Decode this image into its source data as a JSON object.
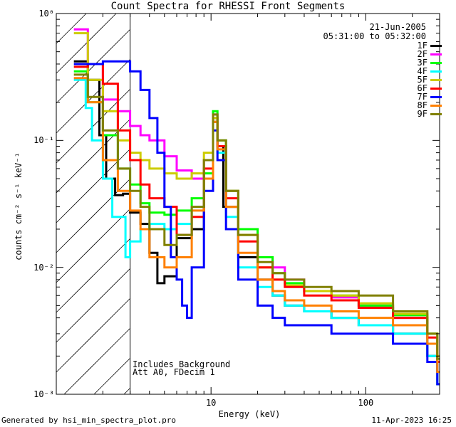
{
  "chart_data": {
    "type": "line",
    "title": "Count Spectra for RHESSI Front Segments",
    "xlabel": "Energy (keV)",
    "ylabel": "counts cm⁻² s⁻¹ keV⁻¹",
    "xscale": "log",
    "yscale": "log",
    "xlim": [
      1.0,
      300
    ],
    "ylim": [
      0.001,
      1.0
    ],
    "x_major_ticks": [
      10,
      100
    ],
    "x_major_tick_labels": [
      "10",
      "100"
    ],
    "y_major_ticks": [
      0.001,
      0.01,
      0.1,
      1
    ],
    "y_major_tick_labels": [
      "10⁻³",
      "10⁻²",
      "10⁻¹",
      "10⁰"
    ],
    "shaded_region": {
      "x_from": 1.0,
      "x_to": 3.0,
      "style": "hatched"
    },
    "annotations": {
      "date": "21-Jun-2005",
      "time_range": "05:31:00 to 05:32:00",
      "note_line1": "Includes Background",
      "note_line2": "Att A0, FDecim 1"
    },
    "series": [
      {
        "name": "1F",
        "color": "#000000",
        "values": [
          [
            1.3,
            0.42
          ],
          [
            1.6,
            0.3
          ],
          [
            1.9,
            0.11
          ],
          [
            2.1,
            0.05
          ],
          [
            2.4,
            0.037
          ],
          [
            2.7,
            0.038
          ],
          [
            3.0,
            0.027
          ],
          [
            3.5,
            0.022
          ],
          [
            4.0,
            0.013
          ],
          [
            4.5,
            0.0075
          ],
          [
            5.0,
            0.0085
          ],
          [
            6.0,
            0.017
          ],
          [
            7.5,
            0.02
          ],
          [
            9.0,
            0.05
          ],
          [
            10.3,
            0.15
          ],
          [
            11.0,
            0.09
          ],
          [
            12.0,
            0.03
          ],
          [
            15.0,
            0.012
          ],
          [
            20.0,
            0.008
          ],
          [
            25.0,
            0.006
          ],
          [
            30.0,
            0.005
          ],
          [
            40.0,
            0.0045
          ],
          [
            60.0,
            0.004
          ],
          [
            90.0,
            0.0035
          ],
          [
            150.0,
            0.003
          ],
          [
            250.0,
            0.002
          ],
          [
            290.0,
            0.0012
          ]
        ]
      },
      {
        "name": "2F",
        "color": "#ff00ff",
        "values": [
          [
            1.3,
            0.75
          ],
          [
            1.6,
            0.4
          ],
          [
            2.0,
            0.21
          ],
          [
            2.5,
            0.17
          ],
          [
            3.0,
            0.13
          ],
          [
            3.5,
            0.11
          ],
          [
            4.0,
            0.1
          ],
          [
            5.0,
            0.075
          ],
          [
            6.0,
            0.058
          ],
          [
            7.5,
            0.05
          ],
          [
            9.0,
            0.07
          ],
          [
            10.3,
            0.16
          ],
          [
            11.0,
            0.09
          ],
          [
            12.5,
            0.04
          ],
          [
            15.0,
            0.02
          ],
          [
            20.0,
            0.012
          ],
          [
            25.0,
            0.01
          ],
          [
            30.0,
            0.008
          ],
          [
            40.0,
            0.0065
          ],
          [
            60.0,
            0.0058
          ],
          [
            90.0,
            0.005
          ],
          [
            150.0,
            0.004
          ],
          [
            250.0,
            0.0025
          ],
          [
            290.0,
            0.0015
          ]
        ]
      },
      {
        "name": "3F",
        "color": "#00ff00",
        "values": [
          [
            1.3,
            0.35
          ],
          [
            1.6,
            0.2
          ],
          [
            2.0,
            0.11
          ],
          [
            2.5,
            0.06
          ],
          [
            3.0,
            0.045
          ],
          [
            3.5,
            0.032
          ],
          [
            4.0,
            0.027
          ],
          [
            5.0,
            0.026
          ],
          [
            6.0,
            0.028
          ],
          [
            7.5,
            0.035
          ],
          [
            9.0,
            0.055
          ],
          [
            10.3,
            0.17
          ],
          [
            11.0,
            0.1
          ],
          [
            12.5,
            0.04
          ],
          [
            15.0,
            0.02
          ],
          [
            20.0,
            0.012
          ],
          [
            25.0,
            0.009
          ],
          [
            30.0,
            0.0075
          ],
          [
            40.0,
            0.0065
          ],
          [
            60.0,
            0.006
          ],
          [
            90.0,
            0.005
          ],
          [
            150.0,
            0.0042
          ],
          [
            250.0,
            0.003
          ],
          [
            290.0,
            0.0018
          ]
        ]
      },
      {
        "name": "4F",
        "color": "#00ffff",
        "values": [
          [
            1.3,
            0.3
          ],
          [
            1.55,
            0.18
          ],
          [
            1.7,
            0.1
          ],
          [
            2.0,
            0.05
          ],
          [
            2.3,
            0.025
          ],
          [
            2.8,
            0.012
          ],
          [
            3.0,
            0.016
          ],
          [
            3.5,
            0.02
          ],
          [
            4.0,
            0.022
          ],
          [
            5.0,
            0.02
          ],
          [
            6.0,
            0.022
          ],
          [
            7.5,
            0.03
          ],
          [
            9.0,
            0.05
          ],
          [
            10.3,
            0.14
          ],
          [
            11.0,
            0.08
          ],
          [
            12.5,
            0.025
          ],
          [
            15.0,
            0.01
          ],
          [
            20.0,
            0.007
          ],
          [
            25.0,
            0.006
          ],
          [
            30.0,
            0.005
          ],
          [
            40.0,
            0.0045
          ],
          [
            60.0,
            0.004
          ],
          [
            90.0,
            0.0035
          ],
          [
            150.0,
            0.003
          ],
          [
            250.0,
            0.002
          ],
          [
            290.0,
            0.0012
          ]
        ]
      },
      {
        "name": "5F",
        "color": "#cccc00",
        "values": [
          [
            1.3,
            0.7
          ],
          [
            1.6,
            0.3
          ],
          [
            2.0,
            0.17
          ],
          [
            2.5,
            0.1
          ],
          [
            3.0,
            0.08
          ],
          [
            3.5,
            0.07
          ],
          [
            4.0,
            0.06
          ],
          [
            5.0,
            0.055
          ],
          [
            6.0,
            0.05
          ],
          [
            7.5,
            0.055
          ],
          [
            9.0,
            0.08
          ],
          [
            10.3,
            0.15
          ],
          [
            11.0,
            0.09
          ],
          [
            12.5,
            0.04
          ],
          [
            15.0,
            0.018
          ],
          [
            20.0,
            0.01
          ],
          [
            25.0,
            0.008
          ],
          [
            30.0,
            0.0072
          ],
          [
            40.0,
            0.0065
          ],
          [
            60.0,
            0.006
          ],
          [
            90.0,
            0.0052
          ],
          [
            150.0,
            0.0043
          ],
          [
            250.0,
            0.003
          ],
          [
            290.0,
            0.002
          ]
        ]
      },
      {
        "name": "6F",
        "color": "#ff0000",
        "values": [
          [
            1.3,
            0.38
          ],
          [
            1.6,
            0.4
          ],
          [
            2.0,
            0.28
          ],
          [
            2.5,
            0.12
          ],
          [
            3.0,
            0.07
          ],
          [
            3.5,
            0.045
          ],
          [
            4.0,
            0.035
          ],
          [
            5.0,
            0.03
          ],
          [
            6.0,
            0.018
          ],
          [
            7.5,
            0.025
          ],
          [
            9.0,
            0.06
          ],
          [
            10.3,
            0.14
          ],
          [
            11.0,
            0.09
          ],
          [
            12.5,
            0.035
          ],
          [
            15.0,
            0.016
          ],
          [
            20.0,
            0.01
          ],
          [
            25.0,
            0.008
          ],
          [
            30.0,
            0.007
          ],
          [
            40.0,
            0.006
          ],
          [
            60.0,
            0.0055
          ],
          [
            90.0,
            0.0048
          ],
          [
            150.0,
            0.004
          ],
          [
            250.0,
            0.0028
          ],
          [
            290.0,
            0.0018
          ]
        ]
      },
      {
        "name": "7F",
        "color": "#0000ff",
        "values": [
          [
            1.3,
            0.4
          ],
          [
            1.6,
            0.4
          ],
          [
            2.0,
            0.42
          ],
          [
            2.5,
            0.42
          ],
          [
            3.0,
            0.35
          ],
          [
            3.5,
            0.25
          ],
          [
            4.0,
            0.15
          ],
          [
            4.5,
            0.08
          ],
          [
            5.0,
            0.03
          ],
          [
            5.5,
            0.012
          ],
          [
            6.0,
            0.008
          ],
          [
            6.5,
            0.005
          ],
          [
            7.0,
            0.004
          ],
          [
            7.5,
            0.01
          ],
          [
            9.0,
            0.04
          ],
          [
            10.3,
            0.12
          ],
          [
            11.0,
            0.07
          ],
          [
            12.5,
            0.02
          ],
          [
            15.0,
            0.008
          ],
          [
            20.0,
            0.005
          ],
          [
            25.0,
            0.004
          ],
          [
            30.0,
            0.0035
          ],
          [
            40.0,
            0.0035
          ],
          [
            60.0,
            0.003
          ],
          [
            90.0,
            0.003
          ],
          [
            150.0,
            0.0025
          ],
          [
            250.0,
            0.0018
          ],
          [
            290.0,
            0.0012
          ]
        ]
      },
      {
        "name": "8F",
        "color": "#ff8000",
        "values": [
          [
            1.3,
            0.31
          ],
          [
            1.6,
            0.2
          ],
          [
            2.0,
            0.07
          ],
          [
            2.5,
            0.04
          ],
          [
            3.0,
            0.028
          ],
          [
            3.5,
            0.02
          ],
          [
            4.0,
            0.012
          ],
          [
            5.0,
            0.01
          ],
          [
            6.0,
            0.012
          ],
          [
            7.5,
            0.028
          ],
          [
            9.0,
            0.05
          ],
          [
            10.3,
            0.14
          ],
          [
            11.0,
            0.085
          ],
          [
            12.5,
            0.03
          ],
          [
            15.0,
            0.013
          ],
          [
            20.0,
            0.008
          ],
          [
            25.0,
            0.0065
          ],
          [
            30.0,
            0.0055
          ],
          [
            40.0,
            0.005
          ],
          [
            60.0,
            0.0045
          ],
          [
            90.0,
            0.004
          ],
          [
            150.0,
            0.0035
          ],
          [
            250.0,
            0.0025
          ],
          [
            290.0,
            0.0015
          ]
        ]
      },
      {
        "name": "9F",
        "color": "#808000",
        "values": [
          [
            1.3,
            0.33
          ],
          [
            1.6,
            0.22
          ],
          [
            2.0,
            0.12
          ],
          [
            2.5,
            0.06
          ],
          [
            3.0,
            0.04
          ],
          [
            3.5,
            0.03
          ],
          [
            4.0,
            0.02
          ],
          [
            5.0,
            0.015
          ],
          [
            6.0,
            0.018
          ],
          [
            7.5,
            0.03
          ],
          [
            9.0,
            0.07
          ],
          [
            10.3,
            0.16
          ],
          [
            11.0,
            0.1
          ],
          [
            12.5,
            0.04
          ],
          [
            15.0,
            0.018
          ],
          [
            20.0,
            0.011
          ],
          [
            25.0,
            0.009
          ],
          [
            30.0,
            0.008
          ],
          [
            40.0,
            0.007
          ],
          [
            60.0,
            0.0065
          ],
          [
            90.0,
            0.006
          ],
          [
            150.0,
            0.0045
          ],
          [
            250.0,
            0.003
          ],
          [
            290.0,
            0.0019
          ]
        ]
      }
    ]
  },
  "footer": {
    "generated_by": "Generated by hsi_min_spectra_plot.pro",
    "timestamp": "11-Apr-2023 16:25"
  }
}
